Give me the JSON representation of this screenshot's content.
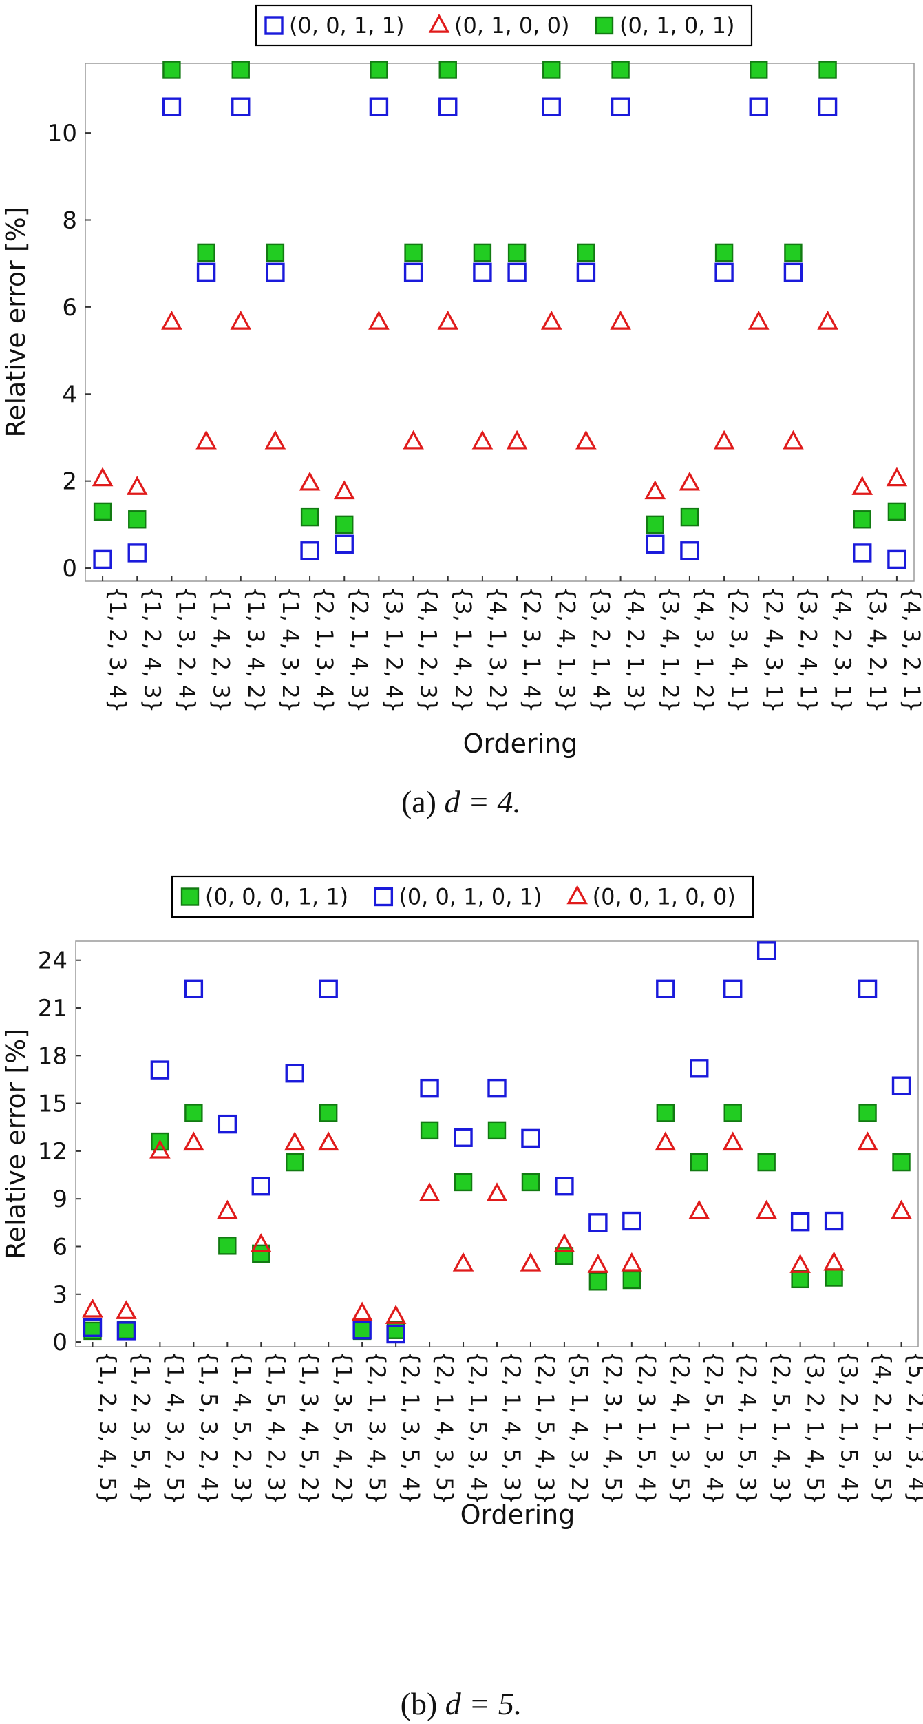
{
  "chart_data": [
    {
      "type": "scatter",
      "xlabel": "Ordering",
      "ylabel": "Relative error [%]",
      "caption": {
        "prefix": "(a)",
        "math": "d = 4."
      },
      "ylim": [
        -0.3,
        11.6
      ],
      "yticks": [
        0,
        2,
        4,
        6,
        8,
        10
      ],
      "legend_position": "top",
      "categories": [
        "{1, 2, 3, 4}",
        "{1, 2, 4, 3}",
        "{1, 3, 2, 4}",
        "{1, 4, 2, 3}",
        "{1, 3, 4, 2}",
        "{1, 4, 3, 2}",
        "{2, 1, 3, 4}",
        "{2, 1, 4, 3}",
        "{3, 1, 2, 4}",
        "{4, 1, 2, 3}",
        "{3, 1, 4, 2}",
        "{4, 1, 3, 2}",
        "{2, 3, 1, 4}",
        "{2, 4, 1, 3}",
        "{3, 2, 1, 4}",
        "{4, 2, 1, 3}",
        "{3, 4, 1, 2}",
        "{4, 3, 1, 2}",
        "{2, 3, 4, 1}",
        "{2, 4, 3, 1}",
        "{3, 2, 4, 1}",
        "{4, 2, 3, 1}",
        "{3, 4, 2, 1}",
        "{4, 3, 2, 1}"
      ],
      "series": [
        {
          "name": "(0, 0, 1, 1)",
          "marker": "open-square",
          "color": "#1a1adb",
          "values": [
            0.2,
            0.35,
            10.6,
            6.8,
            10.6,
            6.8,
            0.4,
            0.55,
            10.6,
            6.8,
            10.6,
            6.8,
            6.8,
            10.6,
            6.8,
            10.6,
            0.55,
            0.4,
            6.8,
            10.6,
            6.8,
            10.6,
            0.35,
            0.2
          ]
        },
        {
          "name": "(0, 1, 0, 0)",
          "marker": "open-triangle",
          "color": "#e01b1b",
          "values": [
            2.05,
            1.85,
            5.65,
            2.9,
            5.65,
            2.9,
            1.95,
            1.75,
            5.65,
            2.9,
            5.65,
            2.9,
            2.9,
            5.65,
            2.9,
            5.65,
            1.75,
            1.95,
            2.9,
            5.65,
            2.9,
            5.65,
            1.85,
            2.05
          ]
        },
        {
          "name": "(0, 1, 0, 1)",
          "marker": "filled-square",
          "color": "#22cc22",
          "values": [
            1.3,
            1.12,
            11.45,
            7.25,
            11.45,
            7.25,
            1.17,
            1.0,
            11.45,
            7.25,
            11.45,
            7.25,
            7.25,
            11.45,
            7.25,
            11.45,
            1.0,
            1.17,
            7.25,
            11.45,
            7.25,
            11.45,
            1.12,
            1.3
          ]
        }
      ]
    },
    {
      "type": "scatter",
      "xlabel": "Ordering",
      "ylabel": "Relative error [%]",
      "caption": {
        "prefix": "(b)",
        "math": "d = 5."
      },
      "ylim": [
        -0.3,
        25.2
      ],
      "yticks": [
        0,
        3,
        6,
        9,
        12,
        15,
        18,
        21,
        24
      ],
      "legend_position": "top",
      "categories": [
        "{1, 2, 3, 4, 5}",
        "{1, 2, 3, 5, 4}",
        "{1, 4, 3, 2, 5}",
        "{1, 5, 3, 2, 4}",
        "{1, 4, 5, 2, 3}",
        "{1, 5, 4, 2, 3}",
        "{1, 3, 4, 5, 2}",
        "{1, 3, 5, 4, 2}",
        "{2, 1, 3, 4, 5}",
        "{2, 1, 3, 5, 4}",
        "{2, 1, 4, 3, 5}",
        "{2, 1, 5, 3, 4}",
        "{2, 1, 4, 5, 3}",
        "{2, 1, 5, 4, 3}",
        "{5, 1, 4, 3, 2}",
        "{2, 3, 1, 4, 5}",
        "{2, 3, 1, 5, 4}",
        "{2, 4, 1, 3, 5}",
        "{2, 5, 1, 3, 4}",
        "{2, 4, 1, 5, 3}",
        "{2, 5, 1, 4, 3}",
        "{3, 2, 1, 4, 5}",
        "{3, 2, 1, 5, 4}",
        "{4, 2, 1, 3, 5}",
        "{5, 2, 1, 3, 4}"
      ],
      "series": [
        {
          "name": "(0, 0, 0, 1, 1)",
          "marker": "filled-square",
          "color": "#22cc22",
          "values": [
            0.7,
            0.75,
            12.6,
            14.4,
            6.05,
            5.55,
            11.3,
            14.4,
            0.7,
            0.75,
            13.3,
            10.05,
            13.3,
            10.05,
            5.4,
            3.8,
            3.9,
            14.4,
            11.3,
            14.4,
            11.3,
            3.95,
            4.05,
            14.4,
            11.3
          ]
        },
        {
          "name": "(0, 0, 1, 0, 1)",
          "marker": "open-square",
          "color": "#1a1adb",
          "values": [
            0.9,
            0.7,
            17.1,
            22.2,
            13.7,
            9.8,
            16.9,
            22.2,
            0.75,
            0.5,
            15.95,
            12.85,
            15.95,
            12.8,
            9.8,
            7.5,
            7.6,
            22.2,
            17.2,
            22.2,
            24.6,
            7.55,
            7.6,
            22.2,
            16.1
          ]
        },
        {
          "name": "(0, 0, 1, 0, 0)",
          "marker": "open-triangle",
          "color": "#e01b1b",
          "values": [
            2.0,
            1.9,
            12.0,
            12.5,
            8.2,
            6.1,
            12.5,
            12.5,
            1.8,
            1.6,
            9.3,
            4.9,
            9.3,
            4.9,
            6.1,
            4.8,
            4.9,
            12.5,
            8.2,
            12.5,
            8.2,
            4.8,
            4.95,
            12.5,
            8.2
          ]
        }
      ]
    }
  ]
}
